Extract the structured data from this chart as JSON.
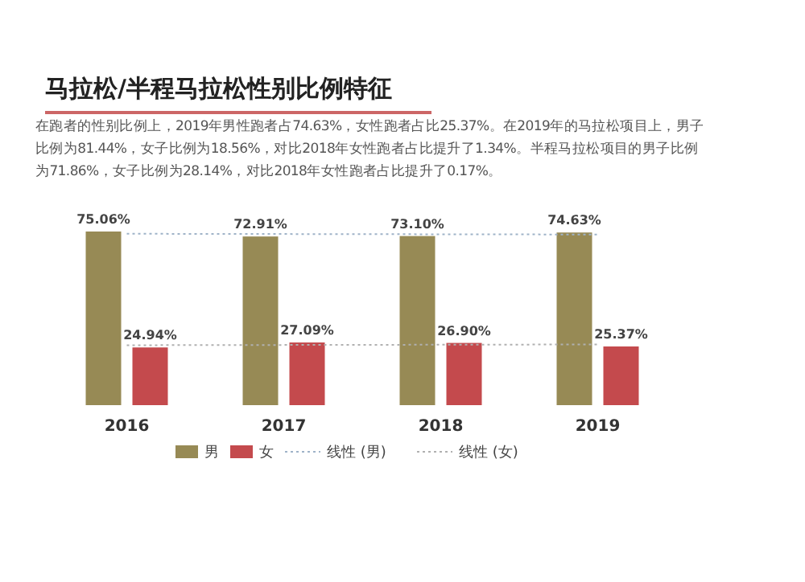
{
  "chart_data": {
    "type": "bar",
    "title": "马拉松/半程马拉松性别比例特征",
    "subtitle": "在跑者的性别比例上，2019年男性跑者占74.63%，女性跑者占比25.37%。在2019年的马拉松项目上，男子比例为81.44%，女子比例为18.56%，对比2018年女性跑者占比提升了1.34%。半程马拉松项目的男子比例为71.86%，女子比例为28.14%，对比2018年女性跑者占比提升了0.17%。",
    "categories": [
      "2016",
      "2017",
      "2018",
      "2019"
    ],
    "series": [
      {
        "name": "男",
        "color": "#978a55",
        "values": [
          75.06,
          72.91,
          73.1,
          74.63
        ],
        "value_labels": [
          "75.06%",
          "72.91%",
          "73.10%",
          "74.63%"
        ]
      },
      {
        "name": "女",
        "color": "#c44a4d",
        "values": [
          24.94,
          27.09,
          26.9,
          25.37
        ],
        "value_labels": [
          "24.94%",
          "27.09%",
          "26.90%",
          "25.37%"
        ]
      },
      {
        "name": "线性 (男)",
        "type": "line",
        "color": "#9fb3c8",
        "line_style": "dotted",
        "values": [
          74.09,
          73.98,
          73.87,
          73.76
        ]
      },
      {
        "name": "线性 (女)",
        "type": "line",
        "color": "#b0b0b0",
        "line_style": "dotted",
        "values": [
          25.91,
          26.02,
          26.13,
          26.24
        ]
      }
    ],
    "legend": "bottom"
  }
}
